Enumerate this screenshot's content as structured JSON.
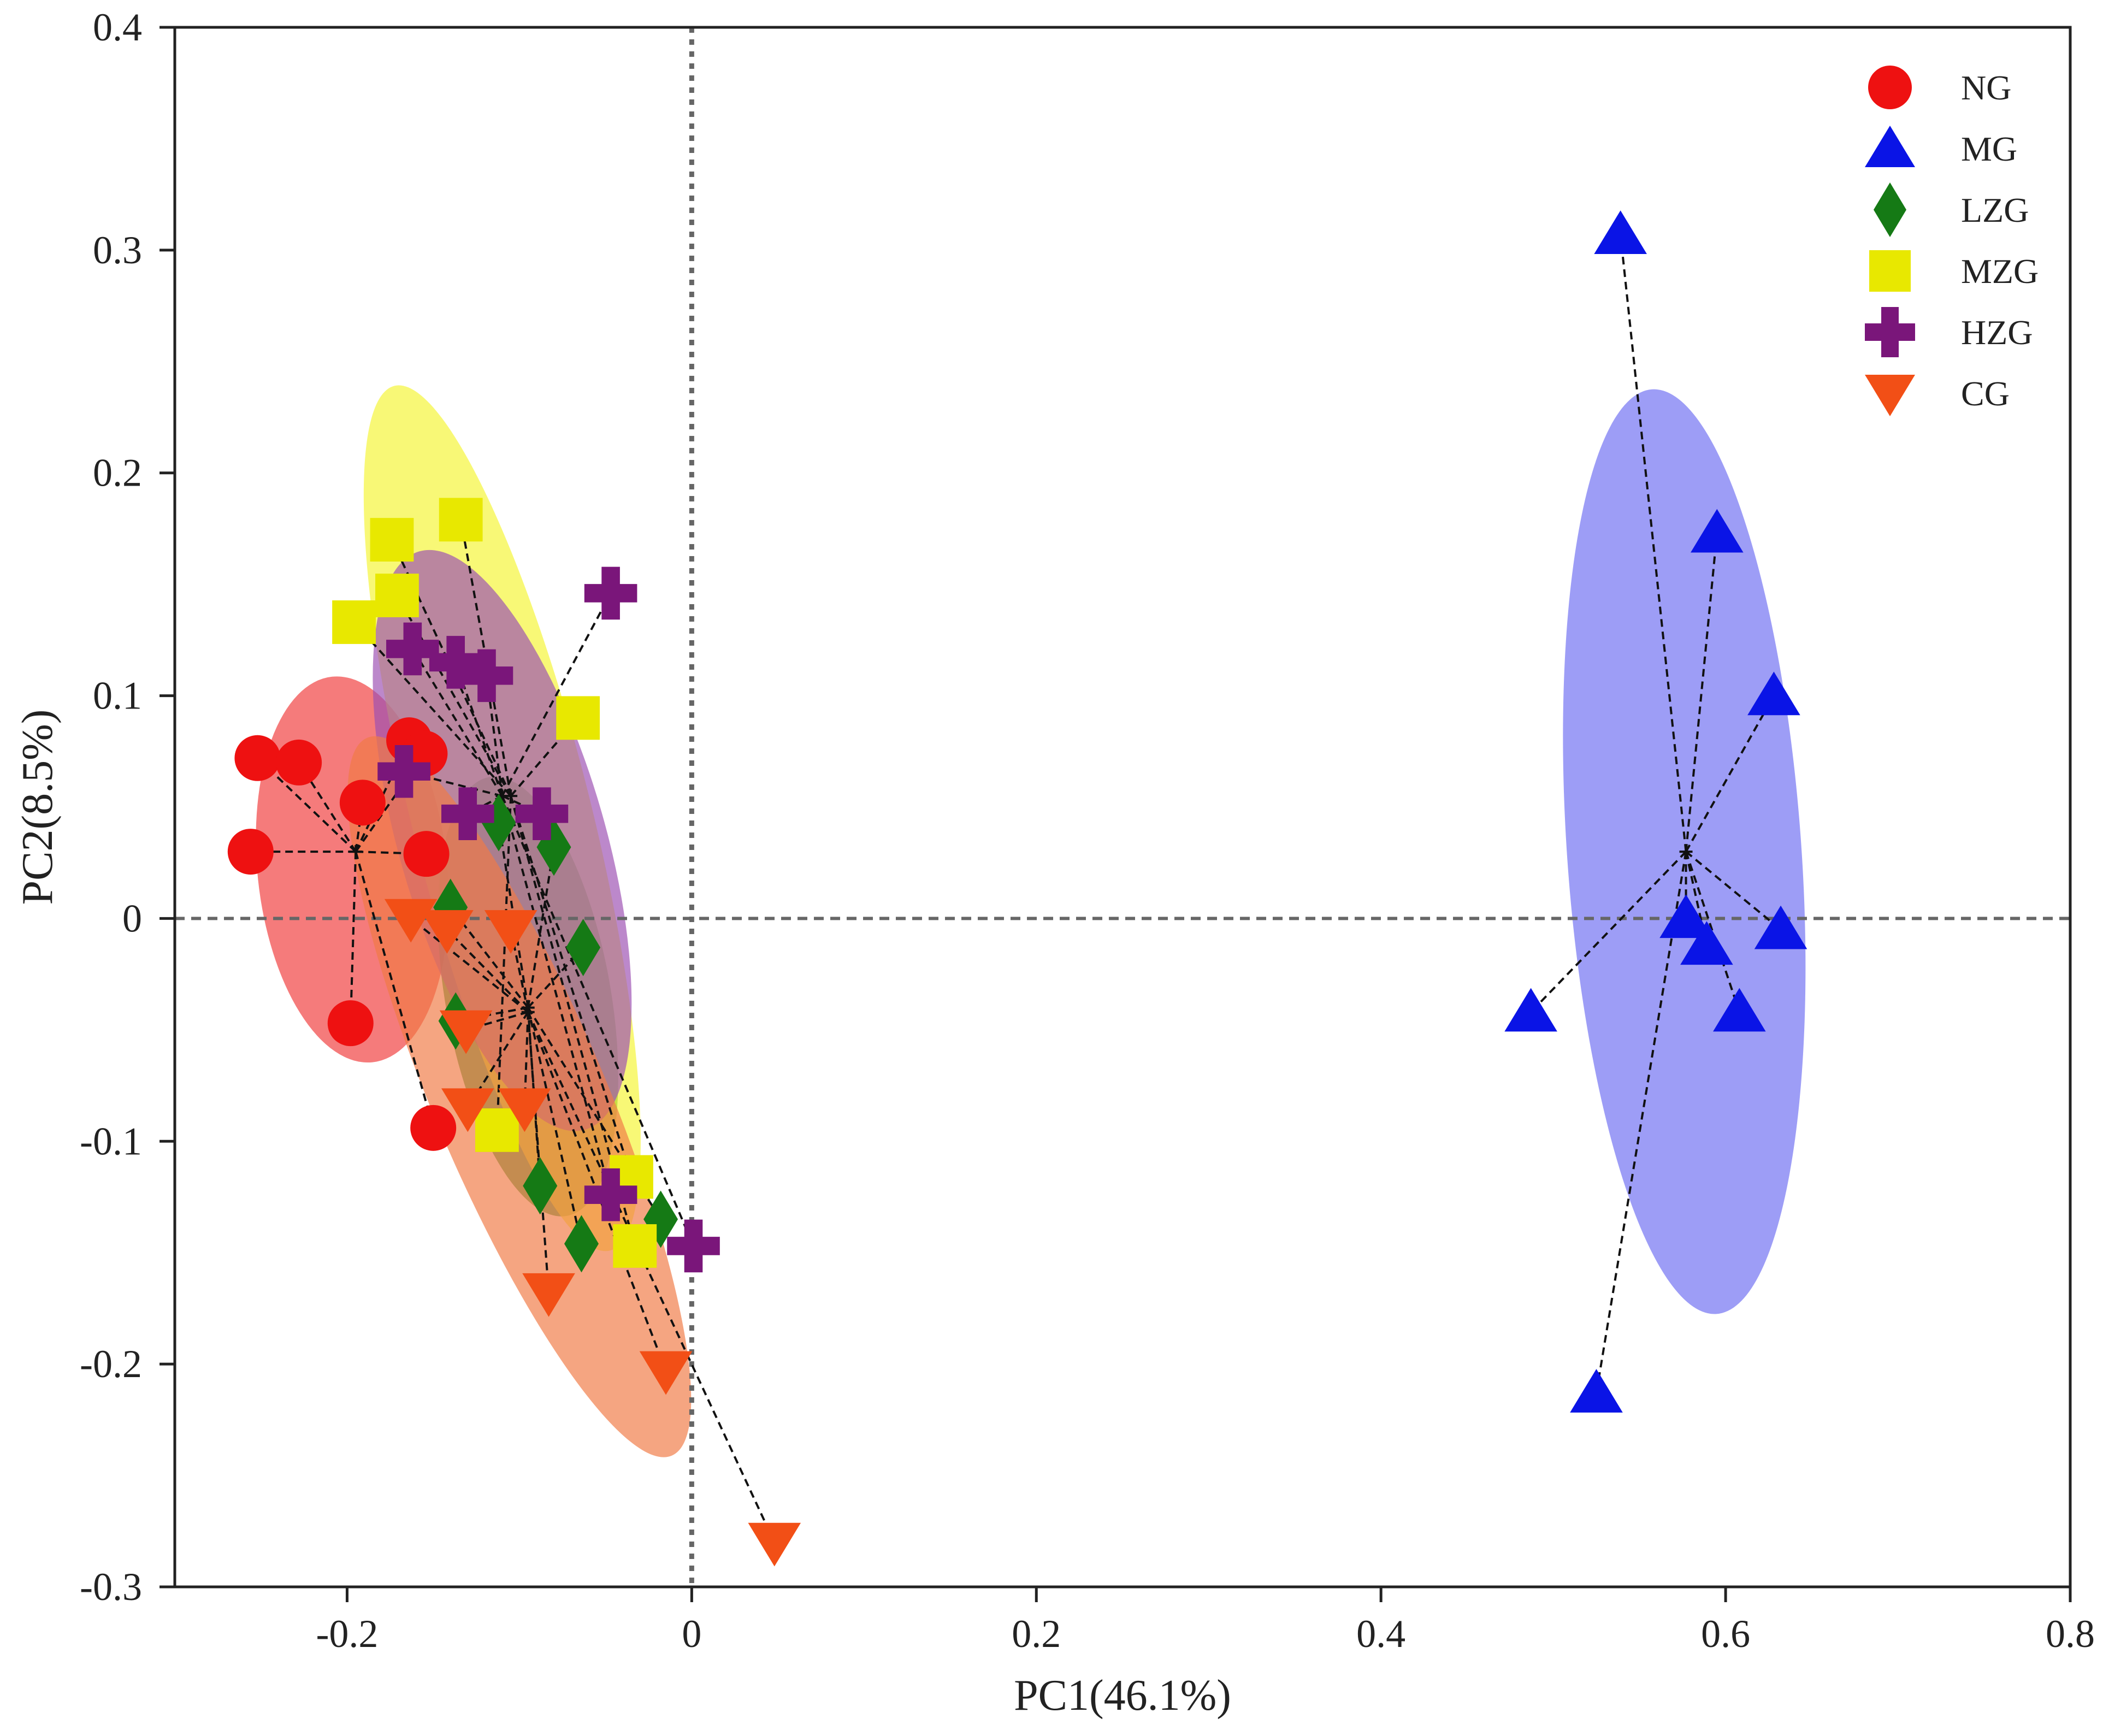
{
  "chart_data": {
    "type": "scatter",
    "title": "",
    "xlabel": "PC1(46.1%)",
    "ylabel": "PC2(8.5%)",
    "xlim": [
      -0.3,
      0.8
    ],
    "ylim": [
      -0.3,
      0.4
    ],
    "xticks": [
      -0.2,
      0,
      0.2,
      0.4,
      0.6,
      0.8
    ],
    "xtick_labels": [
      "-0.2",
      "0",
      "0.2",
      "0.4",
      "0.6",
      "0.8"
    ],
    "yticks": [
      -0.3,
      -0.2,
      -0.1,
      0,
      0.1,
      0.2,
      0.3,
      0.4
    ],
    "ytick_labels": [
      "-0.3",
      "-0.2",
      "-0.1",
      "0",
      "0.1",
      "0.2",
      "0.3",
      "0.4"
    ],
    "reference_lines": {
      "x": 0,
      "y": 0,
      "style": "dotted"
    },
    "legend_position": "top-right",
    "series": [
      {
        "name": "NG",
        "marker": "circle",
        "color": "#ee1111",
        "fill": "#f03c3c",
        "centroid": [
          -0.195,
          0.03
        ],
        "ellipse": {
          "cx": -0.197,
          "cy": 0.022,
          "rx": 0.055,
          "ry": 0.087,
          "angle": -6
        },
        "points": [
          [
            -0.252,
            0.072
          ],
          [
            -0.228,
            0.07
          ],
          [
            -0.191,
            0.052
          ],
          [
            -0.164,
            0.08
          ],
          [
            -0.155,
            0.074
          ],
          [
            -0.256,
            0.03
          ],
          [
            -0.154,
            0.029
          ],
          [
            -0.198,
            -0.047
          ],
          [
            -0.15,
            -0.094
          ]
        ]
      },
      {
        "name": "MG",
        "marker": "triangle-up",
        "color": "#0a14e6",
        "fill": "#6f6ff2",
        "centroid": [
          0.577,
          0.03
        ],
        "ellipse": {
          "cx": 0.576,
          "cy": 0.03,
          "rx": 0.068,
          "ry": 0.208,
          "angle": -4
        },
        "points": [
          [
            0.539,
            0.307
          ],
          [
            0.595,
            0.173
          ],
          [
            0.628,
            0.1
          ],
          [
            0.577,
            0.0
          ],
          [
            0.589,
            -0.012
          ],
          [
            0.632,
            -0.005
          ],
          [
            0.608,
            -0.042
          ],
          [
            0.487,
            -0.042
          ],
          [
            0.525,
            -0.213
          ]
        ]
      },
      {
        "name": "LZG",
        "marker": "diamond",
        "color": "#157a15",
        "fill": "#1e8c1e",
        "centroid": [
          -0.095,
          -0.04
        ],
        "ellipse": {
          "cx": -0.095,
          "cy": -0.035,
          "rx": 0.048,
          "ry": 0.1,
          "angle": -10
        },
        "points": [
          [
            -0.112,
            0.043
          ],
          [
            -0.08,
            0.032
          ],
          [
            -0.063,
            -0.013
          ],
          [
            -0.14,
            0.005
          ],
          [
            -0.137,
            -0.046
          ],
          [
            -0.088,
            -0.12
          ],
          [
            -0.064,
            -0.146
          ],
          [
            -0.018,
            -0.135
          ]
        ]
      },
      {
        "name": "MZG",
        "marker": "square",
        "color": "#e8e800",
        "fill": "#f5f535",
        "centroid": [
          -0.105,
          0.055
        ],
        "ellipse": {
          "cx": -0.11,
          "cy": 0.045,
          "rx": 0.052,
          "ry": 0.2,
          "angle": -14
        },
        "points": [
          [
            -0.174,
            0.17
          ],
          [
            -0.134,
            0.179
          ],
          [
            -0.171,
            0.145
          ],
          [
            -0.196,
            0.133
          ],
          [
            -0.066,
            0.09
          ],
          [
            -0.113,
            -0.095
          ],
          [
            -0.035,
            -0.116
          ],
          [
            -0.033,
            -0.147
          ]
        ]
      },
      {
        "name": "HZG",
        "marker": "cross",
        "color": "#7a167a",
        "fill": "#9c4fb2",
        "centroid": [
          -0.11,
          0.055
        ],
        "ellipse": {
          "cx": -0.11,
          "cy": 0.035,
          "rx": 0.06,
          "ry": 0.135,
          "angle": -16
        },
        "points": [
          [
            -0.047,
            0.146
          ],
          [
            -0.162,
            0.121
          ],
          [
            -0.137,
            0.115
          ],
          [
            -0.119,
            0.109
          ],
          [
            -0.167,
            0.066
          ],
          [
            -0.13,
            0.047
          ],
          [
            -0.087,
            0.047
          ],
          [
            -0.047,
            -0.124
          ],
          [
            0.001,
            -0.147
          ]
        ]
      },
      {
        "name": "CG",
        "marker": "triangle-down",
        "color": "#f24f16",
        "fill": "#f07a45",
        "centroid": [
          -0.095,
          -0.042
        ],
        "ellipse": {
          "cx": -0.1,
          "cy": -0.08,
          "rx": 0.05,
          "ry": 0.175,
          "angle": -23
        },
        "points": [
          [
            -0.163,
            0.0
          ],
          [
            -0.142,
            -0.005
          ],
          [
            -0.105,
            -0.005
          ],
          [
            -0.131,
            -0.05
          ],
          [
            -0.13,
            -0.085
          ],
          [
            -0.097,
            -0.085
          ],
          [
            -0.083,
            -0.168
          ],
          [
            -0.015,
            -0.203
          ],
          [
            0.048,
            -0.28
          ]
        ]
      }
    ]
  }
}
